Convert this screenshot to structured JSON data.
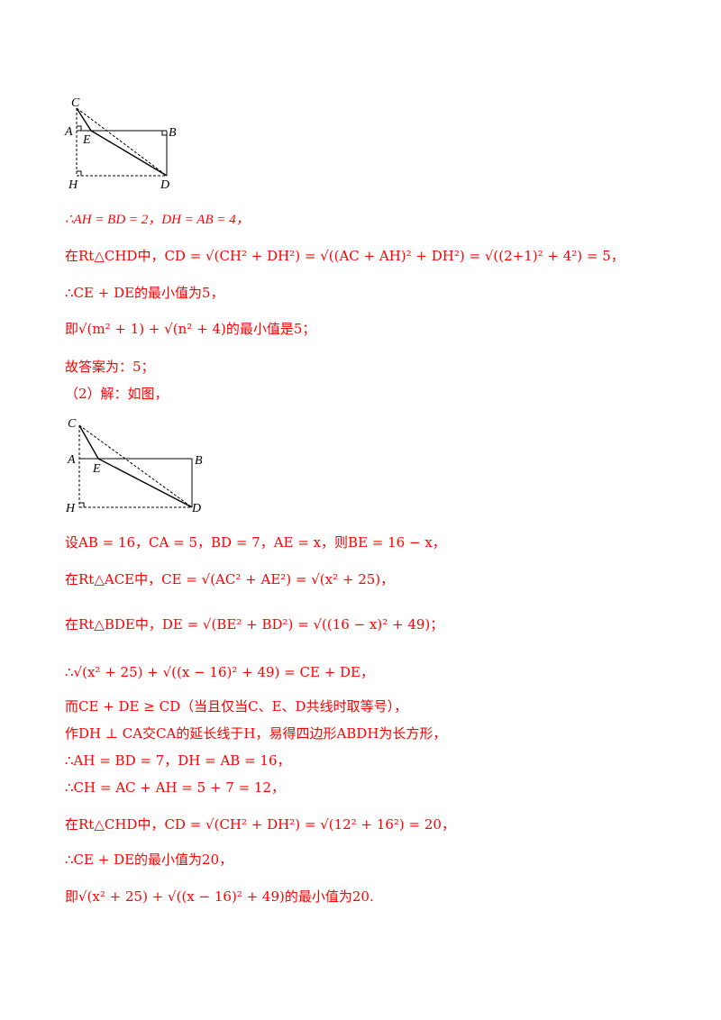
{
  "figure1": {
    "labels": {
      "C": "C",
      "A": "A",
      "E": "E",
      "B": "B",
      "H": "H",
      "D": "D"
    }
  },
  "figure2": {
    "labels": {
      "C": "C",
      "A": "A",
      "E": "E",
      "B": "B",
      "H": "H",
      "D": "D"
    }
  },
  "lines": {
    "l1": "∴AH = BD = 2，DH = AB = 4，",
    "l2": "在Rt△CHD中，CD = √(CH² + DH²) = √((AC + AH)² + DH²) = √((2+1)² + 4²) = 5，",
    "l3": "∴CE + DE的最小值为5，",
    "l4": "即√(m² + 1) + √(n² + 4)的最小值是5；",
    "l5": "故答案为：5；",
    "l6": "（2）解：如图，",
    "l7": "设AB = 16，CA = 5，BD = 7，AE = x，则BE = 16 − x，",
    "l8": "在Rt△ACE中，CE = √(AC² + AE²) = √(x² + 25)，",
    "l9": "在Rt△BDE中，DE = √(BE² + BD²) = √((16 − x)² + 49)；",
    "l10": "∴√(x² + 25) + √((x − 16)² + 49) = CE + DE，",
    "l11": "而CE + DE ≥ CD（当且仅当C、E、D共线时取等号），",
    "l12": "作DH ⊥ CA交CA的延长线于H，易得四边形ABDH为长方形，",
    "l13": "∴AH = BD = 7，DH = AB = 16，",
    "l14": "∴CH = AC + AH = 5 + 7 = 12，",
    "l15": "在Rt△CHD中，CD = √(CH² + DH²) = √(12² + 16²) = 20，",
    "l16": "∴CE + DE的最小值为20，",
    "l17": "即√(x² + 25) + √((x − 16)² + 49)的最小值为20."
  }
}
